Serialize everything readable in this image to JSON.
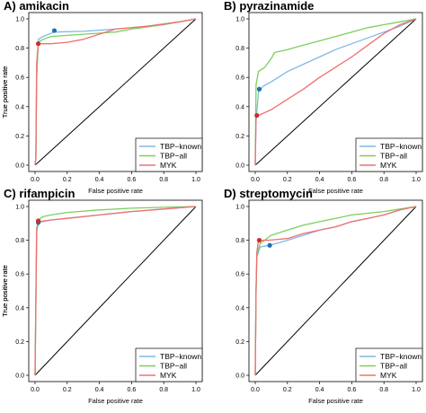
{
  "chart_data": [
    {
      "type": "line",
      "title": "A) amikacin",
      "xlabel": "False positive rate",
      "ylabel": "True positive rate",
      "xlim": [
        0,
        1
      ],
      "ylim": [
        0,
        1
      ],
      "x_ticks": [
        "0.0",
        "0.2",
        "0.4",
        "0.6",
        "0.8",
        "1.0"
      ],
      "y_ticks": [
        "0.0",
        "0.2",
        "0.4",
        "0.6",
        "0.8",
        "1.0"
      ],
      "legend_position": "bottom-right",
      "series": [
        {
          "name": "TBP−known",
          "color": "#7fb8e6",
          "points": [
            [
              0,
              0
            ],
            [
              0.005,
              0.05
            ],
            [
              0.01,
              0.6
            ],
            [
              0.02,
              0.86
            ],
            [
              0.05,
              0.88
            ],
            [
              0.12,
              0.91
            ],
            [
              0.3,
              0.915
            ],
            [
              0.5,
              0.93
            ],
            [
              0.7,
              0.95
            ],
            [
              0.9,
              0.98
            ],
            [
              1,
              1
            ]
          ],
          "marker": {
            "x": 0.12,
            "y": 0.92,
            "color": "#1f6fb4"
          }
        },
        {
          "name": "TBP−all",
          "color": "#7ccf5c",
          "points": [
            [
              0,
              0
            ],
            [
              0.005,
              0.05
            ],
            [
              0.01,
              0.6
            ],
            [
              0.02,
              0.84
            ],
            [
              0.05,
              0.86
            ],
            [
              0.1,
              0.88
            ],
            [
              0.3,
              0.895
            ],
            [
              0.5,
              0.91
            ],
            [
              0.6,
              0.93
            ],
            [
              0.8,
              0.96
            ],
            [
              1,
              1
            ]
          ]
        },
        {
          "name": "MYK",
          "color": "#f07070",
          "points": [
            [
              0,
              0
            ],
            [
              0.005,
              0.05
            ],
            [
              0.01,
              0.7
            ],
            [
              0.02,
              0.83
            ],
            [
              0.1,
              0.83
            ],
            [
              0.2,
              0.84
            ],
            [
              0.3,
              0.86
            ],
            [
              0.5,
              0.93
            ],
            [
              0.7,
              0.95
            ],
            [
              0.9,
              0.98
            ],
            [
              1,
              1
            ]
          ],
          "marker": {
            "x": 0.02,
            "y": 0.83,
            "color": "#d42a2a"
          }
        }
      ]
    },
    {
      "type": "line",
      "title": "B) pyrazinamide",
      "xlabel": "False positive rate",
      "ylabel": "True positive rate",
      "xlim": [
        0,
        1
      ],
      "ylim": [
        0,
        1
      ],
      "x_ticks": [
        "0.0",
        "0.2",
        "0.4",
        "0.6",
        "0.8",
        "1.0"
      ],
      "y_ticks": [
        "0.0",
        "0.2",
        "0.4",
        "0.6",
        "0.8",
        "1.0"
      ],
      "legend_position": "bottom-right",
      "series": [
        {
          "name": "TBP−known",
          "color": "#7fb8e6",
          "points": [
            [
              0,
              0
            ],
            [
              0.005,
              0.3
            ],
            [
              0.02,
              0.5
            ],
            [
              0.05,
              0.54
            ],
            [
              0.1,
              0.57
            ],
            [
              0.2,
              0.64
            ],
            [
              0.3,
              0.69
            ],
            [
              0.4,
              0.74
            ],
            [
              0.5,
              0.79
            ],
            [
              0.6,
              0.83
            ],
            [
              0.7,
              0.87
            ],
            [
              0.8,
              0.91
            ],
            [
              0.9,
              0.95
            ],
            [
              1,
              1
            ]
          ],
          "marker": {
            "x": 0.025,
            "y": 0.52,
            "color": "#1f6fb4"
          }
        },
        {
          "name": "TBP−all",
          "color": "#7ccf5c",
          "points": [
            [
              0,
              0
            ],
            [
              0.005,
              0.55
            ],
            [
              0.02,
              0.64
            ],
            [
              0.06,
              0.67
            ],
            [
              0.1,
              0.73
            ],
            [
              0.12,
              0.77
            ],
            [
              0.2,
              0.79
            ],
            [
              0.3,
              0.82
            ],
            [
              0.4,
              0.85
            ],
            [
              0.5,
              0.88
            ],
            [
              0.6,
              0.91
            ],
            [
              0.7,
              0.94
            ],
            [
              0.8,
              0.96
            ],
            [
              0.9,
              0.98
            ],
            [
              1,
              1
            ]
          ]
        },
        {
          "name": "MYK",
          "color": "#f07070",
          "points": [
            [
              0,
              0
            ],
            [
              0.005,
              0.34
            ],
            [
              0.02,
              0.34
            ],
            [
              0.1,
              0.38
            ],
            [
              0.2,
              0.45
            ],
            [
              0.3,
              0.52
            ],
            [
              0.4,
              0.6
            ],
            [
              0.5,
              0.67
            ],
            [
              0.6,
              0.74
            ],
            [
              0.7,
              0.82
            ],
            [
              0.8,
              0.9
            ],
            [
              0.9,
              0.96
            ],
            [
              1,
              1
            ]
          ],
          "marker": {
            "x": 0.01,
            "y": 0.34,
            "color": "#d42a2a"
          }
        }
      ]
    },
    {
      "type": "line",
      "title": "C) rifampicin",
      "xlabel": "False positive rate",
      "ylabel": "True positive rate",
      "xlim": [
        0,
        1
      ],
      "ylim": [
        0,
        1
      ],
      "x_ticks": [
        "0.0",
        "0.2",
        "0.4",
        "0.6",
        "0.8",
        "1.0"
      ],
      "y_ticks": [
        "0.0",
        "0.2",
        "0.4",
        "0.6",
        "0.8",
        "1.0"
      ],
      "legend_position": "bottom-right",
      "series": [
        {
          "name": "TBP−known",
          "color": "#7fb8e6",
          "points": [
            [
              0,
              0
            ],
            [
              0.01,
              0.85
            ],
            [
              0.02,
              0.905
            ],
            [
              0.1,
              0.92
            ],
            [
              0.2,
              0.93
            ],
            [
              0.4,
              0.95
            ],
            [
              0.6,
              0.97
            ],
            [
              0.8,
              0.985
            ],
            [
              1,
              1
            ]
          ],
          "marker": {
            "x": 0.02,
            "y": 0.905,
            "color": "#1f6fb4"
          }
        },
        {
          "name": "TBP−all",
          "color": "#7ccf5c",
          "points": [
            [
              0,
              0
            ],
            [
              0.01,
              0.87
            ],
            [
              0.02,
              0.92
            ],
            [
              0.05,
              0.94
            ],
            [
              0.1,
              0.95
            ],
            [
              0.2,
              0.965
            ],
            [
              0.4,
              0.98
            ],
            [
              0.6,
              0.99
            ],
            [
              0.8,
              0.995
            ],
            [
              1,
              1
            ]
          ]
        },
        {
          "name": "MYK",
          "color": "#f07070",
          "points": [
            [
              0,
              0
            ],
            [
              0.01,
              0.86
            ],
            [
              0.02,
              0.91
            ],
            [
              0.1,
              0.92
            ],
            [
              0.2,
              0.93
            ],
            [
              0.4,
              0.95
            ],
            [
              0.6,
              0.97
            ],
            [
              0.8,
              0.985
            ],
            [
              1,
              1
            ]
          ],
          "marker": {
            "x": 0.02,
            "y": 0.915,
            "color": "#d42a2a"
          }
        }
      ]
    },
    {
      "type": "line",
      "title": "D) streptomycin",
      "xlabel": "False positive rate",
      "ylabel": "True positive rate",
      "xlim": [
        0,
        1
      ],
      "ylim": [
        0,
        1
      ],
      "x_ticks": [
        "0.0",
        "0.2",
        "0.4",
        "0.6",
        "0.8",
        "1.0"
      ],
      "y_ticks": [
        "0.0",
        "0.2",
        "0.4",
        "0.6",
        "0.8",
        "1.0"
      ],
      "legend_position": "bottom-right",
      "series": [
        {
          "name": "TBP−known",
          "color": "#7fb8e6",
          "points": [
            [
              0,
              0
            ],
            [
              0.005,
              0.5
            ],
            [
              0.01,
              0.7
            ],
            [
              0.03,
              0.76
            ],
            [
              0.09,
              0.77
            ],
            [
              0.2,
              0.8
            ],
            [
              0.3,
              0.83
            ],
            [
              0.4,
              0.86
            ],
            [
              0.5,
              0.88
            ],
            [
              0.6,
              0.91
            ],
            [
              0.7,
              0.93
            ],
            [
              0.8,
              0.95
            ],
            [
              0.9,
              0.98
            ],
            [
              1,
              1
            ]
          ],
          "marker": {
            "x": 0.09,
            "y": 0.77,
            "color": "#1f6fb4"
          }
        },
        {
          "name": "TBP−all",
          "color": "#7ccf5c",
          "points": [
            [
              0,
              0
            ],
            [
              0.005,
              0.5
            ],
            [
              0.01,
              0.72
            ],
            [
              0.03,
              0.78
            ],
            [
              0.1,
              0.83
            ],
            [
              0.2,
              0.86
            ],
            [
              0.3,
              0.89
            ],
            [
              0.4,
              0.91
            ],
            [
              0.5,
              0.93
            ],
            [
              0.6,
              0.95
            ],
            [
              0.7,
              0.96
            ],
            [
              0.8,
              0.97
            ],
            [
              0.9,
              0.985
            ],
            [
              1,
              1
            ]
          ]
        },
        {
          "name": "MYK",
          "color": "#f07070",
          "points": [
            [
              0,
              0
            ],
            [
              0.005,
              0.5
            ],
            [
              0.01,
              0.73
            ],
            [
              0.02,
              0.8
            ],
            [
              0.08,
              0.8
            ],
            [
              0.2,
              0.81
            ],
            [
              0.3,
              0.84
            ],
            [
              0.4,
              0.86
            ],
            [
              0.5,
              0.88
            ],
            [
              0.6,
              0.91
            ],
            [
              0.7,
              0.93
            ],
            [
              0.8,
              0.95
            ],
            [
              0.9,
              0.98
            ],
            [
              1,
              1
            ]
          ],
          "marker": {
            "x": 0.025,
            "y": 0.8,
            "color": "#d42a2a"
          }
        }
      ]
    }
  ]
}
